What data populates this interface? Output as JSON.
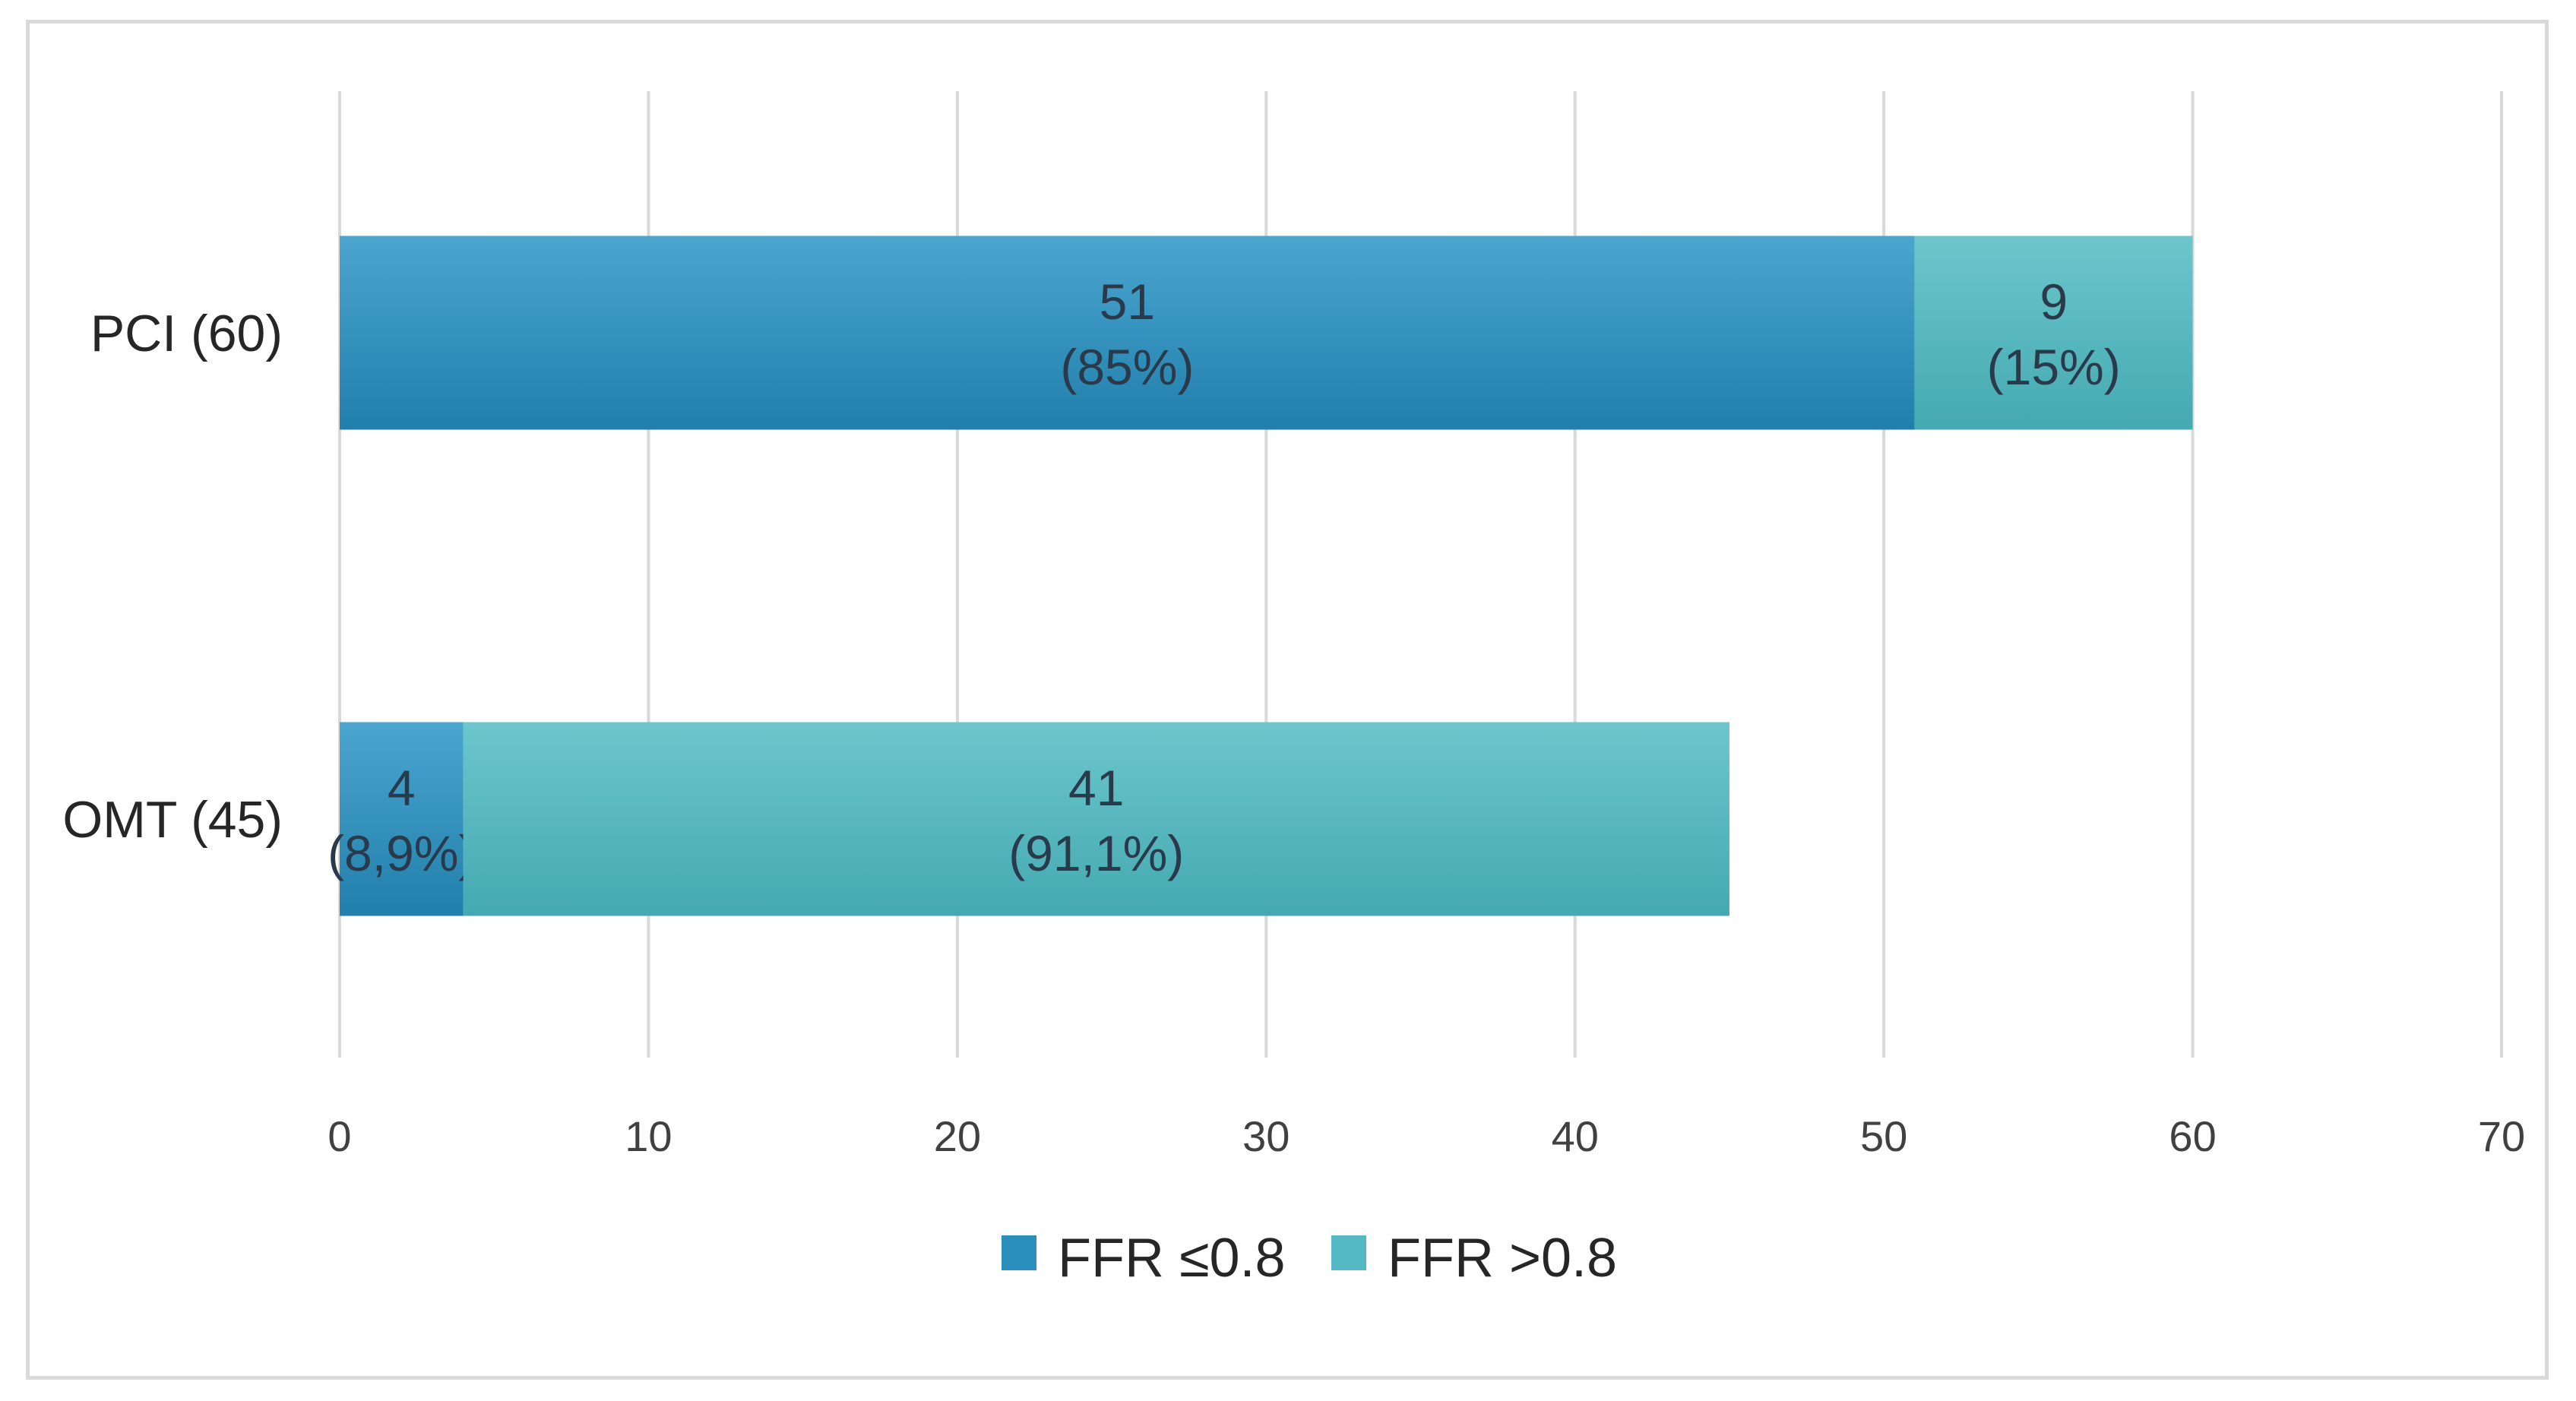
{
  "chart_data": {
    "type": "bar",
    "orientation": "horizontal",
    "stacked": true,
    "categories": [
      "PCI (60)",
      "OMT (45)"
    ],
    "series": [
      {
        "name": "FFR ≤0.8",
        "values": [
          51,
          4
        ],
        "labels": [
          [
            "51",
            "(85%)"
          ],
          [
            "4",
            "(8,9%)"
          ]
        ],
        "color": "#2a8fbd"
      },
      {
        "name": "FFR >0.8",
        "values": [
          9,
          41
        ],
        "labels": [
          [
            "9",
            "(15%)"
          ],
          [
            "41",
            "(91,1%)"
          ]
        ],
        "color": "#55b9c3"
      }
    ],
    "xlim": [
      0,
      70
    ],
    "xticks": [
      "0",
      "10",
      "20",
      "30",
      "40",
      "50",
      "60",
      "70"
    ],
    "grid": "vertical",
    "legend": "bottom-center",
    "title": "",
    "xlabel": "",
    "ylabel": ""
  }
}
